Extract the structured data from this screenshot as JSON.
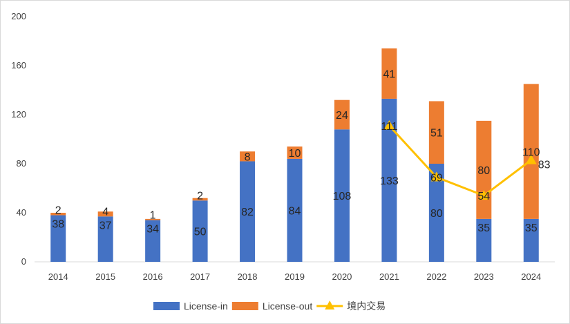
{
  "chart_data": {
    "type": "bar",
    "stacked": true,
    "categories": [
      "2014",
      "2015",
      "2016",
      "2017",
      "2018",
      "2019",
      "2020",
      "2021",
      "2022",
      "2023",
      "2024"
    ],
    "series": [
      {
        "name": "License-in",
        "type": "bar",
        "color": "#4472c4",
        "values": [
          38,
          37,
          34,
          50,
          82,
          84,
          108,
          133,
          80,
          35,
          35
        ]
      },
      {
        "name": "License-out",
        "type": "bar",
        "color": "#ed7d31",
        "values": [
          2,
          4,
          1,
          2,
          8,
          10,
          24,
          41,
          51,
          80,
          110
        ]
      },
      {
        "name": "境内交易",
        "type": "line",
        "color": "#ffc000",
        "marker": "triangle",
        "x": [
          "2021",
          "2022",
          "2023",
          "2024"
        ],
        "values": [
          111,
          69,
          54,
          83
        ]
      }
    ],
    "yticks": [
      "0",
      "40",
      "80",
      "120",
      "160",
      "200"
    ],
    "ylim": [
      0,
      200
    ],
    "grid": false,
    "legend": "bottom"
  }
}
